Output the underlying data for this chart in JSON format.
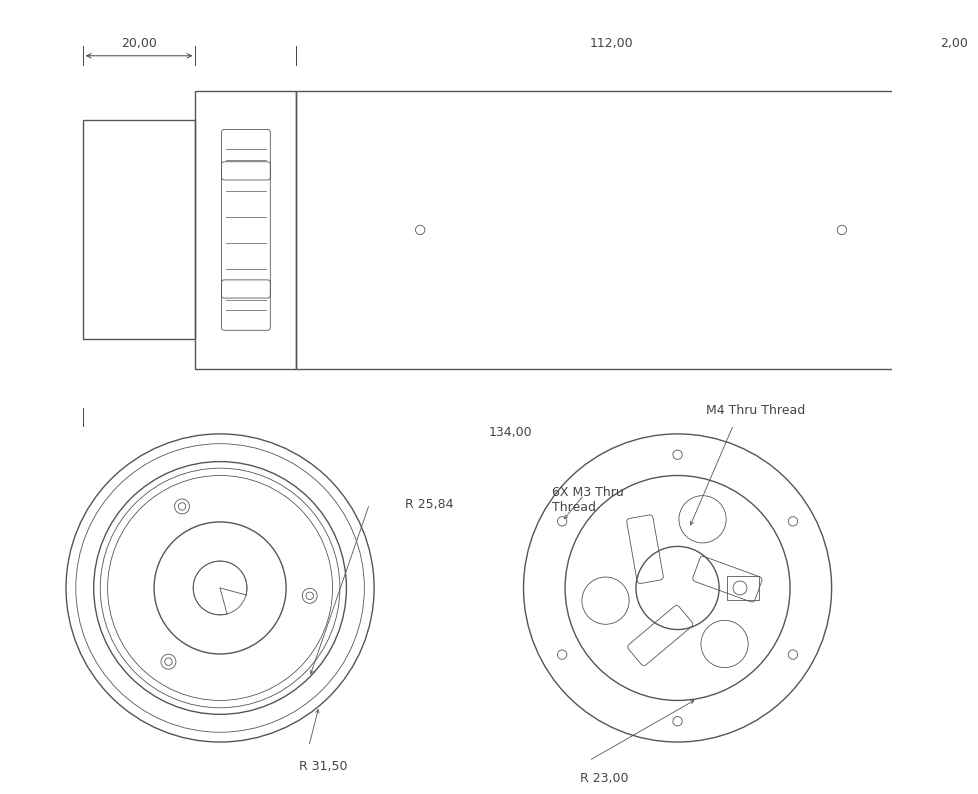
{
  "line_color": "#555555",
  "dim_color": "#444444",
  "font_size": 9,
  "top_view": {
    "dim_20": "20,00",
    "dim_112": "112,00",
    "dim_2": "2,00",
    "dim_134": "134,00"
  },
  "left_circle": {
    "label_r2584": "R 25,84",
    "label_r3150": "R 31,50"
  },
  "right_circle": {
    "label_m4": "M4 Thru Thread",
    "label_m3": "6X M3 Thru\nThread",
    "label_r23": "R 23,00"
  }
}
